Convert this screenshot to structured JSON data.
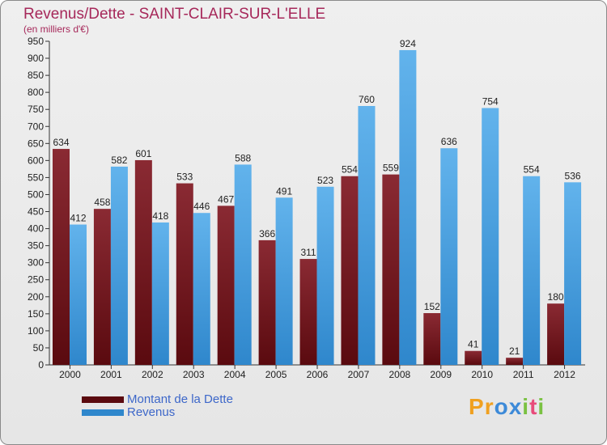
{
  "header": {
    "title": "Revenus/Dette - SAINT-CLAIR-SUR-L'ELLE",
    "subtitle": "(en milliers d'€)"
  },
  "logo": {
    "text": "Proxiti",
    "letters": [
      "P",
      "r",
      "o",
      "x",
      "i",
      "t",
      "i"
    ],
    "colors": [
      "#f0a020",
      "#f0a020",
      "#3d8ad8",
      "#3d8ad8",
      "#7ac142",
      "#e84a7a",
      "#7ac142"
    ]
  },
  "colors": {
    "debt_top": "#8a2a33",
    "debt_bottom": "#5a0a0f",
    "rev_top": "#62b3ec",
    "rev_bottom": "#2f87cc"
  },
  "chart_data": {
    "type": "bar",
    "title": "Revenus/Dette - SAINT-CLAIR-SUR-L'ELLE",
    "subtitle": "(en milliers d'€)",
    "categories": [
      "2000",
      "2001",
      "2002",
      "2003",
      "2004",
      "2005",
      "2006",
      "2007",
      "2008",
      "2009",
      "2010",
      "2011",
      "2012"
    ],
    "series": [
      {
        "name": "Montant de la Dette",
        "values": [
          634,
          458,
          601,
          533,
          467,
          366,
          311,
          554,
          559,
          152,
          41,
          21,
          180
        ]
      },
      {
        "name": "Revenus",
        "values": [
          412,
          582,
          418,
          446,
          588,
          491,
          523,
          760,
          924,
          636,
          754,
          554,
          536
        ]
      }
    ],
    "ylim": [
      0,
      950
    ],
    "ytick_step": 50,
    "grid": false,
    "legend_position": "bottom-left"
  }
}
